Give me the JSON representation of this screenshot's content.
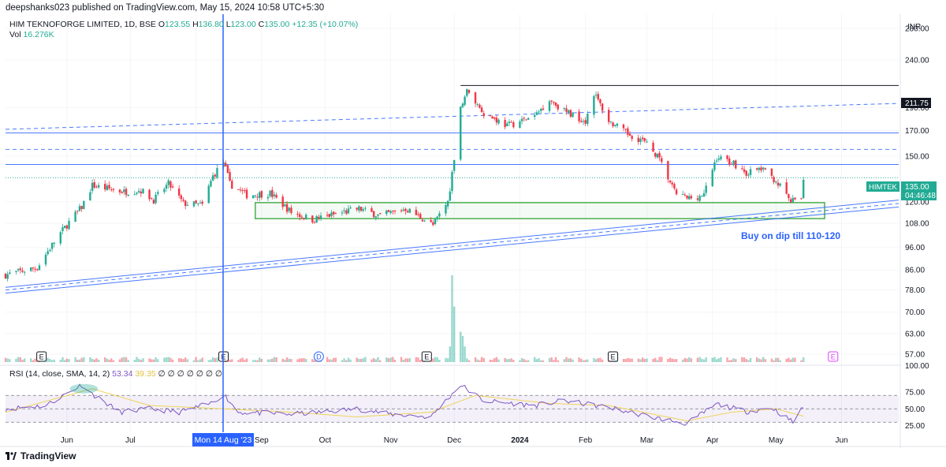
{
  "header": {
    "publisher_line": "deepshanks023 published on TradingView.com, May 15, 2024 10:58 UTC+5:30"
  },
  "symbol": {
    "name": "HIM TEKNOFORGE LIMITED, 1D, BSE",
    "o_label": "O",
    "o": "123.55",
    "h_label": "H",
    "h": "136.80",
    "l_label": "L",
    "l": "123.00",
    "c_label": "C",
    "c": "135.00",
    "change": "+12.35 (+10.07%)",
    "vol_label": "Vol",
    "vol": "16.276K"
  },
  "currency": "INR",
  "rsi_legend": {
    "label": "RSI (14, close, SMA, 14, 2)",
    "rsi": "53.34",
    "sma": "39.35",
    "na": "∅ ∅ ∅ ∅ ∅ ∅ ∅"
  },
  "price_tag": {
    "symbol": "HIMTEK",
    "price": "135.00",
    "countdown": "04:46:48"
  },
  "annotation": "Buy on dip till 110-120",
  "crosshair_date": "Mon 14 Aug '23",
  "footer": {
    "brand": "TradingView"
  },
  "colors": {
    "up": "#22ab94",
    "down": "#f23645",
    "rsi": "#7e57c2",
    "rsi_sma": "#f0d35a",
    "trend": "#2962ff",
    "zone": "#4caf50"
  },
  "chart_data": {
    "type": "candlestick",
    "title": "HIM TEKNOFORGE LIMITED, 1D, BSE",
    "price_axis": {
      "scale": "log",
      "ticks": [
        "280.00",
        "240.00",
        "190.00",
        "170.00",
        "150.00",
        "120.00",
        "108.00",
        "96.00",
        "86.00",
        "78.00",
        "70.00",
        "63.00",
        "57.00"
      ],
      "range": [
        54,
        300
      ]
    },
    "time_axis": {
      "ticks": [
        "Jun",
        "Jul",
        "Aug",
        "Sep",
        "Oct",
        "Nov",
        "Dec",
        "2024",
        "Feb",
        "Mar",
        "Apr",
        "May",
        "Jun"
      ],
      "start": "2023-05-03",
      "end": "2024-06-28"
    },
    "labels": {
      "resistance": "211.75",
      "last": "135.00"
    },
    "price_anchors": [
      {
        "date": "2023-05-03",
        "price": 84
      },
      {
        "date": "2023-05-18",
        "price": 87
      },
      {
        "date": "2023-05-29",
        "price": 103
      },
      {
        "date": "2023-06-08",
        "price": 117
      },
      {
        "date": "2023-06-13",
        "price": 130
      },
      {
        "date": "2023-06-20",
        "price": 128
      },
      {
        "date": "2023-06-28",
        "price": 126
      },
      {
        "date": "2023-07-06",
        "price": 127
      },
      {
        "date": "2023-07-12",
        "price": 121
      },
      {
        "date": "2023-07-19",
        "price": 131
      },
      {
        "date": "2023-07-26",
        "price": 119
      },
      {
        "date": "2023-08-04",
        "price": 118
      },
      {
        "date": "2023-08-09",
        "price": 136
      },
      {
        "date": "2023-08-14",
        "price": 146
      },
      {
        "date": "2023-08-17",
        "price": 131
      },
      {
        "date": "2023-08-25",
        "price": 124
      },
      {
        "date": "2023-09-05",
        "price": 125
      },
      {
        "date": "2023-09-15",
        "price": 114
      },
      {
        "date": "2023-09-25",
        "price": 110
      },
      {
        "date": "2023-10-06",
        "price": 113
      },
      {
        "date": "2023-10-17",
        "price": 116
      },
      {
        "date": "2023-10-27",
        "price": 112
      },
      {
        "date": "2023-11-08",
        "price": 116
      },
      {
        "date": "2023-11-17",
        "price": 110
      },
      {
        "date": "2023-11-21",
        "price": 107
      },
      {
        "date": "2023-11-28",
        "price": 120
      },
      {
        "date": "2023-12-01",
        "price": 145
      },
      {
        "date": "2023-12-04",
        "price": 192
      },
      {
        "date": "2023-12-07",
        "price": 206
      },
      {
        "date": "2023-12-15",
        "price": 185
      },
      {
        "date": "2023-12-26",
        "price": 174
      },
      {
        "date": "2024-01-08",
        "price": 182
      },
      {
        "date": "2024-01-15",
        "price": 198
      },
      {
        "date": "2024-01-22",
        "price": 187
      },
      {
        "date": "2024-02-01",
        "price": 178
      },
      {
        "date": "2024-02-05",
        "price": 204
      },
      {
        "date": "2024-02-12",
        "price": 178
      },
      {
        "date": "2024-02-20",
        "price": 168
      },
      {
        "date": "2024-02-28",
        "price": 162
      },
      {
        "date": "2024-03-06",
        "price": 150
      },
      {
        "date": "2024-03-14",
        "price": 126
      },
      {
        "date": "2024-03-20",
        "price": 122
      },
      {
        "date": "2024-03-28",
        "price": 124
      },
      {
        "date": "2024-04-03",
        "price": 149
      },
      {
        "date": "2024-04-10",
        "price": 146
      },
      {
        "date": "2024-04-17",
        "price": 138
      },
      {
        "date": "2024-04-24",
        "price": 141
      },
      {
        "date": "2024-05-01",
        "price": 133
      },
      {
        "date": "2024-05-08",
        "price": 120
      },
      {
        "date": "2024-05-13",
        "price": 122
      },
      {
        "date": "2024-05-14",
        "price": 135
      }
    ],
    "rsi_axis": {
      "ticks": [
        "75.00",
        "50.00",
        "25.00"
      ],
      "range": [
        15,
        95
      ],
      "bands": [
        30,
        70
      ]
    },
    "rsi_anchors": [
      {
        "date": "2023-05-03",
        "value": 50
      },
      {
        "date": "2023-05-22",
        "value": 55
      },
      {
        "date": "2023-06-08",
        "value": 86
      },
      {
        "date": "2023-06-13",
        "value": 72
      },
      {
        "date": "2023-06-26",
        "value": 45
      },
      {
        "date": "2023-07-10",
        "value": 50
      },
      {
        "date": "2023-07-24",
        "value": 45
      },
      {
        "date": "2023-08-08",
        "value": 58
      },
      {
        "date": "2023-08-14",
        "value": 72
      },
      {
        "date": "2023-08-21",
        "value": 45
      },
      {
        "date": "2023-09-15",
        "value": 42
      },
      {
        "date": "2023-09-29",
        "value": 45
      },
      {
        "date": "2023-10-16",
        "value": 50
      },
      {
        "date": "2023-11-01",
        "value": 42
      },
      {
        "date": "2023-11-20",
        "value": 38
      },
      {
        "date": "2023-12-04",
        "value": 86
      },
      {
        "date": "2023-12-15",
        "value": 62
      },
      {
        "date": "2024-01-08",
        "value": 55
      },
      {
        "date": "2024-01-22",
        "value": 62
      },
      {
        "date": "2024-02-12",
        "value": 52
      },
      {
        "date": "2024-03-06",
        "value": 36
      },
      {
        "date": "2024-03-20",
        "value": 28
      },
      {
        "date": "2024-04-03",
        "value": 57
      },
      {
        "date": "2024-04-17",
        "value": 46
      },
      {
        "date": "2024-04-29",
        "value": 52
      },
      {
        "date": "2024-05-09",
        "value": 30
      },
      {
        "date": "2024-05-14",
        "value": 53
      }
    ],
    "rsi_sma_anchors": [
      {
        "date": "2023-05-03",
        "value": 45
      },
      {
        "date": "2023-06-13",
        "value": 80
      },
      {
        "date": "2023-07-10",
        "value": 55
      },
      {
        "date": "2023-08-14",
        "value": 50
      },
      {
        "date": "2023-09-15",
        "value": 45
      },
      {
        "date": "2023-10-16",
        "value": 38
      },
      {
        "date": "2023-11-20",
        "value": 45
      },
      {
        "date": "2023-12-11",
        "value": 70
      },
      {
        "date": "2024-01-15",
        "value": 58
      },
      {
        "date": "2024-02-12",
        "value": 55
      },
      {
        "date": "2024-03-20",
        "value": 32
      },
      {
        "date": "2024-04-10",
        "value": 45
      },
      {
        "date": "2024-05-01",
        "value": 50
      },
      {
        "date": "2024-05-14",
        "value": 39
      }
    ],
    "volume_spikes": [
      {
        "date": "2023-11-29",
        "value": 18
      },
      {
        "date": "2023-11-30",
        "value": 100
      },
      {
        "date": "2023-12-01",
        "value": 64
      },
      {
        "date": "2023-12-04",
        "value": 35
      },
      {
        "date": "2023-12-05",
        "value": 30
      },
      {
        "date": "2023-12-06",
        "value": 18
      }
    ],
    "events": [
      {
        "date": "2023-05-20",
        "label": "E"
      },
      {
        "date": "2023-08-14",
        "label": "E"
      },
      {
        "date": "2023-09-28",
        "label": "D"
      },
      {
        "date": "2023-11-18",
        "label": "E"
      },
      {
        "date": "2024-02-14",
        "label": "E"
      },
      {
        "date": "2024-05-28",
        "label": "E"
      }
    ],
    "horizontal_levels": [
      {
        "price": 211.75,
        "style": "solid-black"
      },
      {
        "price": 168,
        "style": "solid-blue"
      },
      {
        "price": 155,
        "style": "dashed-blue"
      },
      {
        "price": 144,
        "style": "solid-blue"
      },
      {
        "price": 135,
        "style": "dotted-green"
      }
    ],
    "trendlines": [
      {
        "from": {
          "date": "2023-05-03",
          "price": 171
        },
        "to": {
          "date": "2024-06-28",
          "price": 194
        },
        "style": "dashed"
      },
      {
        "from": {
          "date": "2023-05-03",
          "price": 79
        },
        "to": {
          "date": "2024-06-28",
          "price": 121
        },
        "style": "solid"
      },
      {
        "from": {
          "date": "2023-05-03",
          "price": 78
        },
        "to": {
          "date": "2024-06-28",
          "price": 119
        },
        "style": "dashed"
      },
      {
        "from": {
          "date": "2023-05-03",
          "price": 76.8
        },
        "to": {
          "date": "2024-06-28",
          "price": 117
        },
        "style": "solid"
      }
    ],
    "zone": {
      "from_date": "2023-08-29",
      "to_date": "2024-05-24",
      "low": 110.5,
      "high": 119.5
    }
  }
}
